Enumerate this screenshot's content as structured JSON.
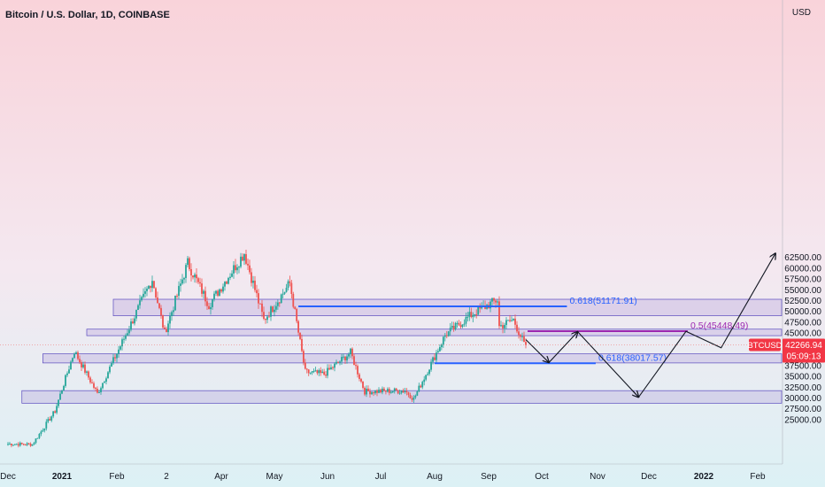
{
  "header": {
    "title": "Bitcoin / U.S. Dollar, 1D, COINBASE",
    "currency": "USD"
  },
  "chart_data": {
    "type": "candlestick",
    "title": "Bitcoin / U.S. Dollar, 1D, COINBASE",
    "symbol": "BTCUSD",
    "last_price": "42266.94",
    "countdown": "05:09:13",
    "ylim": [
      23500,
      65000
    ],
    "y_ticks": [
      "62500.00",
      "60000.00",
      "57500.00",
      "55000.00",
      "52500.00",
      "50000.00",
      "47500.00",
      "45000.00",
      "42500.00",
      "40000.00",
      "37500.00",
      "35000.00",
      "32500.00",
      "30000.00",
      "27500.00",
      "25000.00"
    ],
    "x_ticks": [
      "Dec",
      "2021",
      "Feb",
      "2",
      "Apr",
      "May",
      "Jun",
      "Jul",
      "Aug",
      "Sep",
      "Oct",
      "Nov",
      "Dec",
      "2022",
      "Feb"
    ],
    "zones": [
      {
        "from_date": "2021-01-30",
        "to_date": "2022-03-01",
        "low": 49000,
        "high": 52800
      },
      {
        "from_date": "2021-01-15",
        "to_date": "2022-03-01",
        "low": 44400,
        "high": 45900
      },
      {
        "from_date": "2020-12-21",
        "to_date": "2022-03-01",
        "low": 38100,
        "high": 40200
      },
      {
        "from_date": "2020-12-09",
        "to_date": "2022-03-01",
        "low": 28800,
        "high": 31700
      }
    ],
    "levels": [
      {
        "label": "0.618(51171.91)",
        "value": 51171.91,
        "from_date": "2021-05-15",
        "to_date": "2021-10-15",
        "color": "#2962ff"
      },
      {
        "label": "0.5(45448.49)",
        "value": 45448.49,
        "from_date": "2021-09-23",
        "to_date": "2021-12-23",
        "color": "#9c27b0"
      },
      {
        "label": "0.618(38017.57)",
        "value": 38017.57,
        "from_date": "2021-08-01",
        "to_date": "2021-10-31",
        "color": "#2962ff"
      }
    ],
    "projection": [
      {
        "date": "2021-09-22",
        "price": 43500
      },
      {
        "date": "2021-10-05",
        "price": 38200
      },
      {
        "date": "2021-10-21",
        "price": 45300
      },
      {
        "date": "2021-11-25",
        "price": 30200
      },
      {
        "date": "2021-12-22",
        "price": 45400
      },
      {
        "date": "2022-01-11",
        "price": 41600
      },
      {
        "date": "2022-02-11",
        "price": 63400
      }
    ],
    "price_path": [
      {
        "date": "2020-12-01",
        "price": 19400
      },
      {
        "date": "2020-12-15",
        "price": 19300
      },
      {
        "date": "2020-12-28",
        "price": 27000
      },
      {
        "date": "2021-01-08",
        "price": 40800
      },
      {
        "date": "2021-01-21",
        "price": 31000
      },
      {
        "date": "2021-02-08",
        "price": 46300
      },
      {
        "date": "2021-02-21",
        "price": 57500
      },
      {
        "date": "2021-02-28",
        "price": 45000
      },
      {
        "date": "2021-03-13",
        "price": 61200
      },
      {
        "date": "2021-03-25",
        "price": 51500
      },
      {
        "date": "2021-04-14",
        "price": 63500
      },
      {
        "date": "2021-04-25",
        "price": 48000
      },
      {
        "date": "2021-05-10",
        "price": 56500
      },
      {
        "date": "2021-05-19",
        "price": 36000
      },
      {
        "date": "2021-05-30",
        "price": 35500
      },
      {
        "date": "2021-06-14",
        "price": 40500
      },
      {
        "date": "2021-06-22",
        "price": 31500
      },
      {
        "date": "2021-07-15",
        "price": 31700
      },
      {
        "date": "2021-07-20",
        "price": 29800
      },
      {
        "date": "2021-08-07",
        "price": 44500
      },
      {
        "date": "2021-08-23",
        "price": 49500
      },
      {
        "date": "2021-09-06",
        "price": 52700
      },
      {
        "date": "2021-09-07",
        "price": 46500
      },
      {
        "date": "2021-09-15",
        "price": 48100
      },
      {
        "date": "2021-09-21",
        "price": 42500
      },
      {
        "date": "2021-09-22",
        "price": 42267
      }
    ]
  }
}
